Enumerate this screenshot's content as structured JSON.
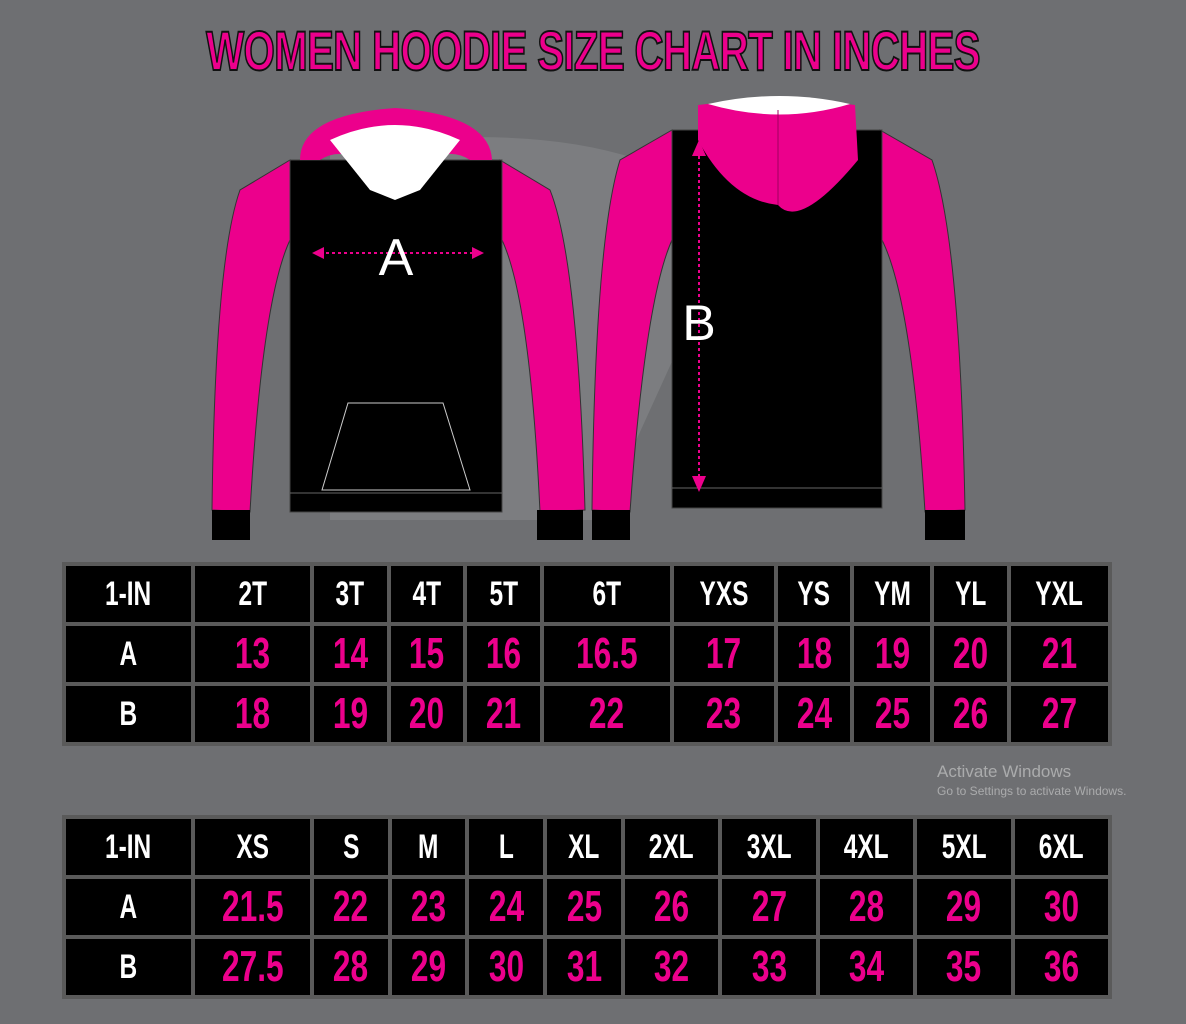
{
  "title": "WOMEN HOODIE SIZE CHART IN INCHES",
  "diagram": {
    "front_label": "A",
    "back_label": "B"
  },
  "colors": {
    "accent": "#ec008c",
    "background": "#6e6f72",
    "body": "#000000"
  },
  "tables": [
    {
      "header": [
        "1-IN",
        "2T",
        "3T",
        "4T",
        "5T",
        "6T",
        "YXS",
        "YS",
        "YM",
        "YL",
        "YXL"
      ],
      "rows": [
        [
          "A",
          "13",
          "14",
          "15",
          "16",
          "16.5",
          "17",
          "18",
          "19",
          "20",
          "21"
        ],
        [
          "B",
          "18",
          "19",
          "20",
          "21",
          "22",
          "23",
          "24",
          "25",
          "26",
          "27"
        ]
      ]
    },
    {
      "header": [
        "1-IN",
        "XS",
        "S",
        "M",
        "L",
        "XL",
        "2XL",
        "3XL",
        "4XL",
        "5XL",
        "6XL"
      ],
      "rows": [
        [
          "A",
          "21.5",
          "22",
          "23",
          "24",
          "25",
          "26",
          "27",
          "28",
          "29",
          "30"
        ],
        [
          "B",
          "27.5",
          "28",
          "29",
          "30",
          "31",
          "32",
          "33",
          "34",
          "35",
          "36"
        ]
      ]
    }
  ],
  "watermark": {
    "line1": "Activate Windows",
    "line2": "Go to Settings to activate Windows."
  }
}
